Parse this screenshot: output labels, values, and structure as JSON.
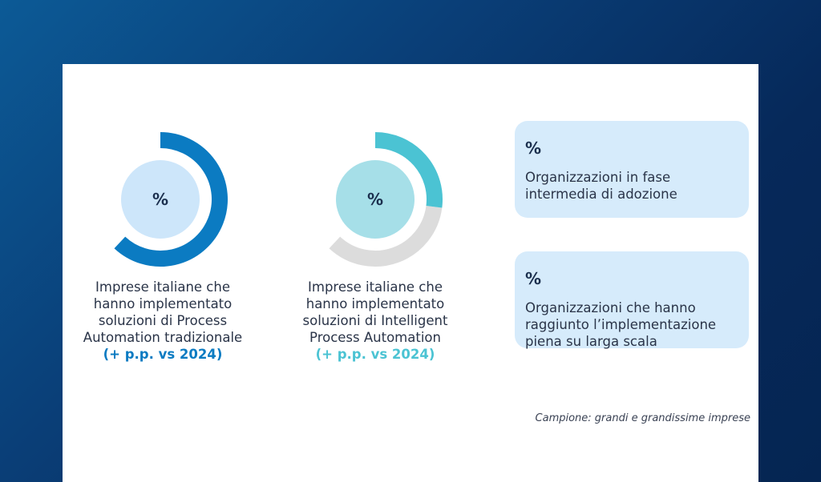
{
  "colors": {
    "accent_blue": "#0b7bc2",
    "accent_teal": "#4bc3d3",
    "inner_blue": "#cde6fa",
    "inner_teal": "#a6dfe8",
    "track_gray": "#dcdcdc",
    "box_bg": "#d6ebfb"
  },
  "donuts": [
    {
      "pct_label": "%",
      "desc_lines": [
        "Imprese italiane che",
        "hanno implementato",
        "soluzioni di Process",
        "Automation tradizionale"
      ],
      "highlight": "(+ p.p. vs 2024)",
      "fill_fraction": 0.62
    },
    {
      "pct_label": "%",
      "desc_lines": [
        "Imprese italiane che",
        "hanno implementato",
        "soluzioni di Intelligent",
        "Process Automation"
      ],
      "highlight": "(+ p.p. vs 2024)",
      "fill_fraction": 0.27
    }
  ],
  "stats": [
    {
      "pct_label": "%",
      "text_lines": [
        "Organizzazioni in fase",
        "intermedia di adozione"
      ]
    },
    {
      "pct_label": "%",
      "text_lines": [
        "Organizzazioni che hanno",
        "raggiunto l’implementazione",
        "piena su larga scala"
      ]
    }
  ],
  "footnote": "Campione: grandi e grandissime imprese"
}
